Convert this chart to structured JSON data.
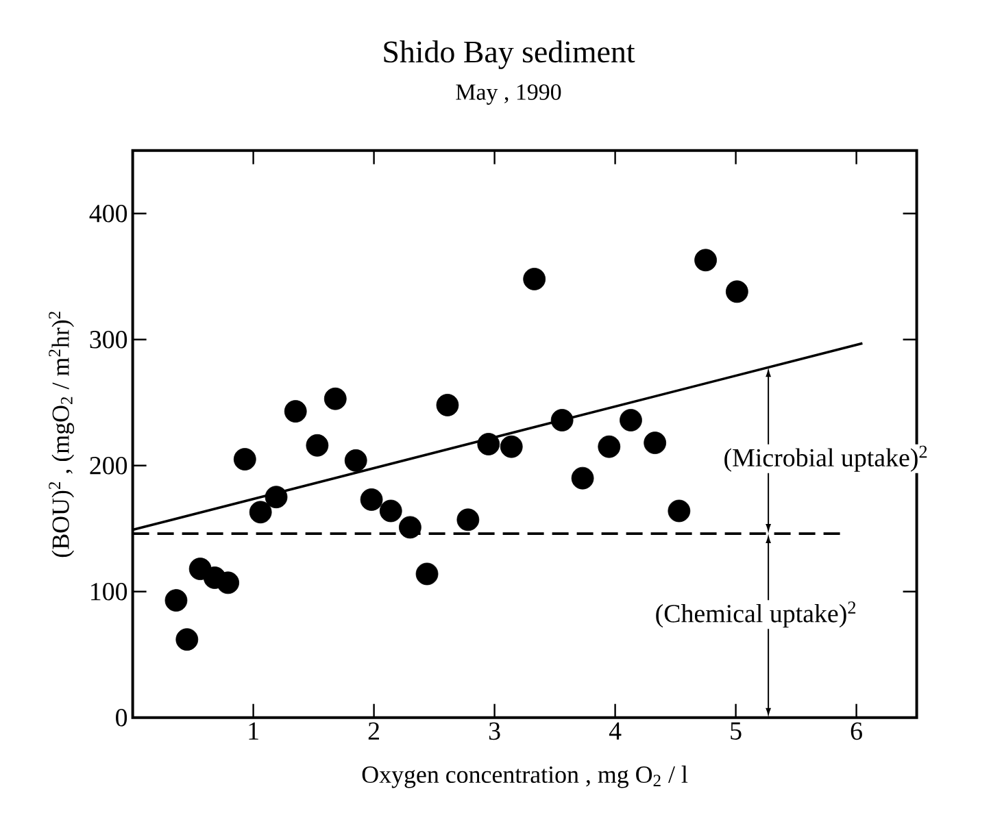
{
  "chart_data": {
    "type": "scatter",
    "title": "Shido Bay sediment",
    "subtitle": "May , 1990",
    "xlabel": "Oxygen concentration , mg O$_{2}$ / l",
    "ylabel": "(BOU)$^{2}$ , (mgO$_{2}$ / m$^{2}$hr)$^{2}$",
    "xlim": [
      0,
      6.5
    ],
    "ylim": [
      0,
      450
    ],
    "xticks": [
      1,
      2,
      3,
      4,
      5,
      6
    ],
    "yticks": [
      0,
      100,
      200,
      300,
      400
    ],
    "marker": "circle",
    "series": [
      {
        "color": "#000000",
        "x": [
          0.36,
          0.45,
          0.56,
          0.68,
          0.79,
          0.93,
          1.06,
          1.19,
          1.35,
          1.53,
          1.68,
          1.85,
          1.98,
          2.14,
          2.3,
          2.44,
          2.61,
          2.78,
          2.95,
          3.14,
          3.33,
          3.56,
          3.73,
          3.95,
          4.13,
          4.33,
          4.53,
          4.75,
          5.01
        ],
        "values": [
          93,
          62,
          118,
          111,
          107,
          205,
          163,
          175,
          243,
          216,
          253,
          204,
          173,
          164,
          151,
          114,
          248,
          157,
          217,
          215,
          348,
          236,
          190,
          215,
          236,
          218,
          164,
          363,
          338
        ]
      },
      {
        "type": "line",
        "color": "#000000",
        "line_style": "solid",
        "marker": "none",
        "x": [
          0,
          6.05
        ],
        "values": [
          149,
          297
        ]
      },
      {
        "type": "line",
        "color": "#000000",
        "line_style": "dashed",
        "marker": "none",
        "x": [
          0,
          5.9
        ],
        "values": [
          146,
          146
        ]
      }
    ],
    "annotations": [
      {
        "text": "(Microbial uptake)$^{2}$",
        "x": 5.27,
        "y": 278
      },
      {
        "text": "(Chemical uptake)$^{2}$",
        "x": 5.27,
        "y": 146
      }
    ]
  }
}
